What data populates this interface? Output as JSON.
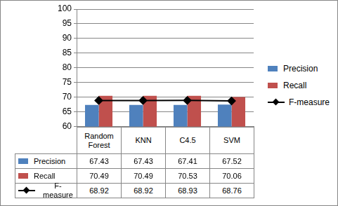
{
  "chart_data": {
    "type": "bar",
    "categories": [
      "Random Forest",
      "KNN",
      "C4.5",
      "SVM"
    ],
    "series": [
      {
        "name": "Precision",
        "color": "#4f81bd",
        "type": "bar",
        "values": [
          67.43,
          67.43,
          67.41,
          67.52
        ]
      },
      {
        "name": "Recall",
        "color": "#c0504d",
        "type": "bar",
        "values": [
          70.49,
          70.49,
          70.53,
          70.06
        ]
      },
      {
        "name": "F-measure",
        "color": "#000000",
        "type": "line",
        "marker": "diamond",
        "line_style": "solid",
        "values": [
          68.92,
          68.92,
          68.93,
          68.76
        ]
      }
    ],
    "ylim": [
      60,
      100
    ],
    "yticks": [
      60,
      65,
      70,
      75,
      80,
      85,
      90,
      95,
      100
    ],
    "grid": true,
    "legend": "right"
  }
}
